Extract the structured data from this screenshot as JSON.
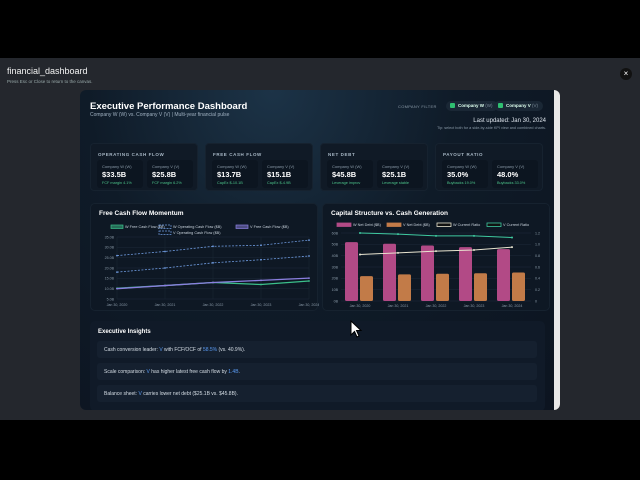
{
  "window": {
    "title": "financial_dashboard",
    "hint": "Press Esc or Close to return to the canvas.",
    "close": "×"
  },
  "header": {
    "title": "Executive Performance Dashboard",
    "subtitle": "Company W (W) vs. Company V (V) | Multi-year financial pulse",
    "filter_label": "COMPANY FILTER",
    "chips": [
      {
        "name": "Company W",
        "abbr": "(W)",
        "checked": true
      },
      {
        "name": "Company V",
        "abbr": "(V)",
        "checked": true
      }
    ],
    "updated": "Last updated: Jan 30, 2024",
    "tip": "Tip: select both for a side-by-side KPI view and combined charts."
  },
  "kpis": [
    {
      "label": "OPERATING CASH FLOW",
      "items": [
        {
          "company": "Company W (W)",
          "value": "$33.5B",
          "note": "FCF margin 4.1%"
        },
        {
          "company": "Company V (V)",
          "value": "$25.8B",
          "note": "FCF margin 6.2%"
        }
      ]
    },
    {
      "label": "FREE CASH FLOW",
      "items": [
        {
          "company": "Company W (W)",
          "value": "$13.7B",
          "note": "CapEx $-10.1B"
        },
        {
          "company": "Company V (V)",
          "value": "$15.1B",
          "note": "CapEx $-4.9B"
        }
      ]
    },
    {
      "label": "NET DEBT",
      "items": [
        {
          "company": "Company W (W)",
          "value": "$45.8B",
          "note": "Leverage improv"
        },
        {
          "company": "Company V (V)",
          "value": "$25.1B",
          "note": "Leverage stable"
        }
      ]
    },
    {
      "label": "PAYOUT RATIO",
      "items": [
        {
          "company": "Company W (W)",
          "value": "35.0%",
          "note": "Buybacks 19.0%"
        },
        {
          "company": "Company V (V)",
          "value": "48.0%",
          "note": "Buybacks 33.0%"
        }
      ]
    }
  ],
  "chart_data": [
    {
      "type": "line",
      "title": "Free Cash Flow Momentum",
      "categories": [
        "Jan 30, 2020",
        "Jan 30, 2021",
        "Jan 30, 2022",
        "Jan 30, 2023",
        "Jan 30, 2024"
      ],
      "ylim": [
        5,
        35
      ],
      "yticks": [
        "5.0B",
        "10.0B",
        "15.0B",
        "20.0B",
        "25.0B",
        "30.0B",
        "35.0B"
      ],
      "legend": "top",
      "series": [
        {
          "name": "W Free Cash Flow ($B)",
          "values": [
            10.2,
            11.5,
            13.0,
            12.0,
            13.7
          ],
          "color": "#3bbf8a",
          "dashed": false
        },
        {
          "name": "W Operating Cash Flow ($B)",
          "values": [
            26.0,
            28.0,
            30.5,
            31.0,
            33.5
          ],
          "color": "#6f9be0",
          "dashed": true
        },
        {
          "name": "V Free Cash Flow ($B)",
          "values": [
            10.0,
            11.5,
            13.0,
            14.0,
            15.1
          ],
          "color": "#8b7fe0",
          "dashed": false
        },
        {
          "name": "V Operating Cash Flow ($B)",
          "values": [
            18.0,
            20.0,
            22.5,
            24.0,
            25.8
          ],
          "color": "#6f9be0",
          "dashed": true
        }
      ]
    },
    {
      "type": "bar",
      "title": "Capital Structure vs. Cash Generation",
      "categories": [
        "Jan 30, 2020",
        "Jan 30, 2021",
        "Jan 30, 2022",
        "Jan 30, 2023",
        "Jan 30, 2024"
      ],
      "ylim": [
        0,
        60
      ],
      "yticks": [
        "0B",
        "10B",
        "20B",
        "30B",
        "40B",
        "50B",
        "60B"
      ],
      "y2lim": [
        0,
        1.2
      ],
      "y2ticks": [
        "0",
        "0.2",
        "0.4",
        "0.6",
        "0.8",
        "1.0",
        "1.2"
      ],
      "legend": "top",
      "series": [
        {
          "name": "W Net Debt ($B)",
          "kind": "bar",
          "values": [
            52.0,
            50.5,
            49.0,
            47.5,
            45.8
          ],
          "color": "#b24a86"
        },
        {
          "name": "V Net Debt ($B)",
          "kind": "bar",
          "values": [
            22.0,
            23.5,
            24.0,
            24.5,
            25.1
          ],
          "color": "#c27b48"
        },
        {
          "name": "W Current Ratio",
          "kind": "line",
          "axis": "right",
          "values": [
            0.82,
            0.85,
            0.88,
            0.9,
            0.95
          ],
          "color": "#e8e4d0"
        },
        {
          "name": "V Current Ratio",
          "kind": "line",
          "axis": "right",
          "values": [
            1.2,
            1.18,
            1.15,
            1.15,
            1.12
          ],
          "color": "#3fc9a0"
        }
      ]
    }
  ],
  "insights": {
    "title": "Executive Insights",
    "rows": [
      {
        "pre": "Cash conversion leader: ",
        "who": "V",
        "mid": " with FCF/OCF of ",
        "val": "58.5%",
        "post": " (vs. 40.9%)."
      },
      {
        "pre": "Scale comparison: ",
        "who": "V",
        "mid": " has higher latest free cash flow by ",
        "val": "1.4B",
        "post": "."
      },
      {
        "pre": "Balance sheet: ",
        "who": "V",
        "mid": " carries lower net debt ($25.1B vs. $45.8B).",
        "val": "",
        "post": ""
      }
    ]
  }
}
